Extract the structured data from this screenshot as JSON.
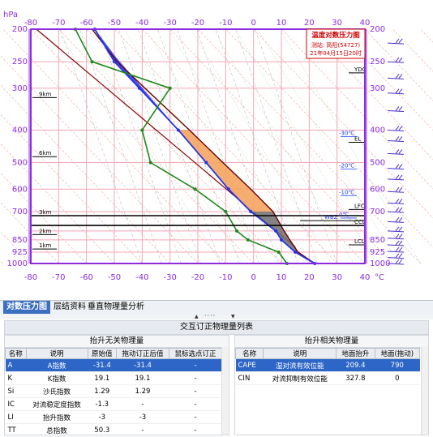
{
  "chart": {
    "top_ticks": [
      "-80",
      "-70",
      "-60",
      "-50",
      "-40",
      "-30",
      "-20",
      "-10",
      "0",
      "10",
      "20",
      "30",
      "40"
    ],
    "bottom_ticks": [
      "-80",
      "-70",
      "-60",
      "-50",
      "-40",
      "-30",
      "-20",
      "-10",
      "0",
      "10",
      "20",
      "30",
      "40"
    ],
    "top_left_unit": "hPa",
    "bottom_right_unit": "°C",
    "pressure_ticks_left": [
      "200",
      "250",
      "300",
      "400",
      "500",
      "600",
      "700",
      "850",
      "925",
      "1000"
    ],
    "pressure_ticks_right": [
      "200",
      "250",
      "300",
      "400",
      "500",
      "600",
      "700",
      "850",
      "925",
      "1000"
    ],
    "extra_left_tick": "800",
    "height_labels": [
      "9km",
      "6km",
      "3km",
      "2km",
      "1km"
    ],
    "level_labels": [
      "YDC",
      "EL",
      "LFC",
      "CCL",
      "LCL",
      "WBZ"
    ],
    "iso_labels": [
      "-30℃",
      "-20℃",
      "-10℃",
      "0℃"
    ],
    "legend": {
      "title": "温度对数压力图",
      "station": "测站: 简阳(54727)",
      "time": "21年04月15日20时"
    },
    "colors": {
      "frame": "#8a2be2",
      "temperature": "#2233ee",
      "dewpoint": "#1a8a1a",
      "parcel": "#6b0000",
      "cape_fill": "#f4a460",
      "cin_fill": "#6e6e6e",
      "grid": "#f3a5b4"
    }
  },
  "chart_data": {
    "type": "line",
    "title": "温度对数压力图",
    "xlabel": "",
    "ylabel": "hPa",
    "xlim": [
      -80,
      40
    ],
    "ylim": [
      1000,
      200
    ],
    "series": [
      {
        "name": "",
        "pressure": [
          1000,
          925,
          850,
          800,
          700,
          600,
          500,
          400,
          300,
          250,
          200
        ],
        "values": [
          22,
          15,
          10,
          8,
          -1,
          -9,
          -17,
          -27,
          -41,
          -50,
          -57
        ]
      },
      {
        "name": "",
        "pressure": [
          1000,
          925,
          850,
          800,
          700,
          600,
          500,
          400,
          300,
          250,
          200
        ],
        "values": [
          12,
          9,
          -2,
          -6,
          -10,
          -21,
          -37,
          -40,
          -30,
          -58,
          -64
        ]
      }
    ]
  },
  "tabs": [
    "对数压力图",
    "层结资料",
    "垂直物理量分析"
  ],
  "panel_title": "交互订正物理量列表",
  "left_group": {
    "title": "抬升无关物理量",
    "headers": [
      "名称",
      "说明",
      "原始值",
      "拖动订正后值",
      "鼠标选点订正"
    ],
    "rows": [
      [
        "A",
        "A指数",
        "-31.4",
        "-31.4",
        "-"
      ],
      [
        "K",
        "K指数",
        "19.1",
        "19.1",
        "-"
      ],
      [
        "Si",
        "沙氏指数",
        "1.29",
        "1.29",
        "-"
      ],
      [
        "IC",
        "对流稳定度指数",
        "-1.3",
        "-",
        "-"
      ],
      [
        "LI",
        "抬升指数",
        "-3",
        "-3",
        "-"
      ],
      [
        "TT",
        "总指数",
        "50.3",
        "-",
        "-"
      ]
    ]
  },
  "right_group": {
    "title": "抬升相关物理量",
    "headers": [
      "名称",
      "说明",
      "地面抬升",
      "地面(拖动)"
    ],
    "rows": [
      [
        "CAPE",
        "湿对流有效位能",
        "209.4",
        "790"
      ],
      [
        "CIN",
        "对流抑制有效位能",
        "327.8",
        "0"
      ]
    ]
  }
}
